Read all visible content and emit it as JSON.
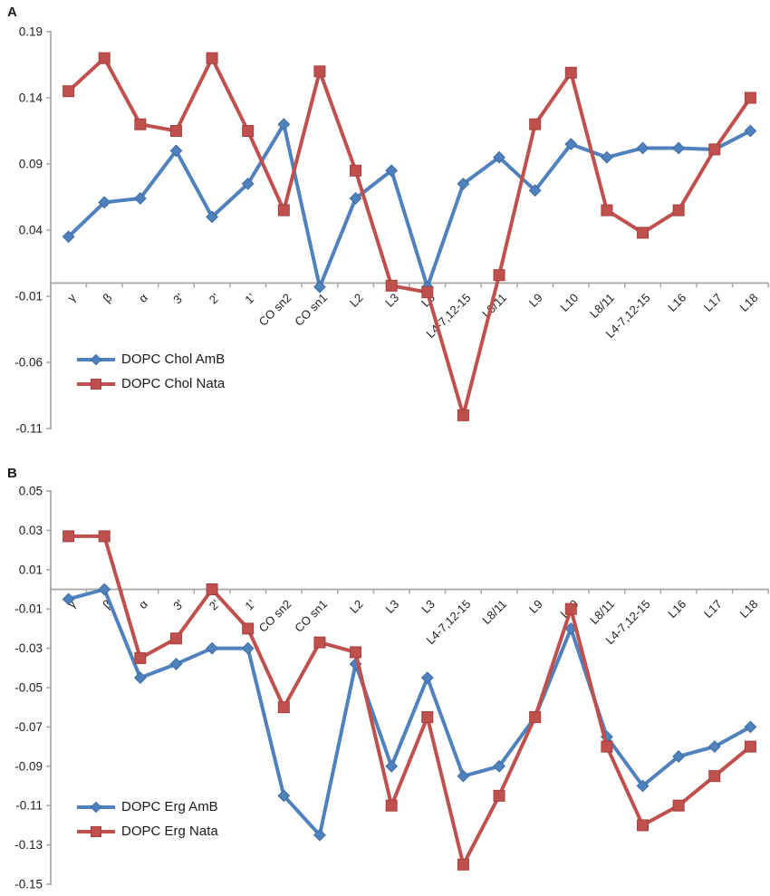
{
  "figure": {
    "background": "#ffffff",
    "text_color": "#1f1f1f",
    "axis_color": "#a6a6a6"
  },
  "chart_data": [
    {
      "panel_label": "A",
      "type": "line",
      "grid": false,
      "legend_position": "inside-bottom-left",
      "categories": [
        "γ",
        "β",
        "α",
        "3'",
        "2'",
        "1'",
        "CO sn2",
        "CO sn1",
        "L2",
        "L3",
        "L3",
        "L4-7,12-15",
        "L8/11",
        "L9",
        "L10",
        "L8/11",
        "L4-7,12-15",
        "L16",
        "L17",
        "L18"
      ],
      "xlabel": "",
      "ylabel": "",
      "ylim": [
        -0.11,
        0.19
      ],
      "yticks": [
        0.19,
        0.14,
        0.09,
        0.04,
        -0.01,
        -0.06,
        -0.11
      ],
      "series": [
        {
          "name": "DOPC Chol AmB",
          "color": "#4F81BD",
          "edge_color": "#3D6CA5",
          "marker": "diamond",
          "values": [
            0.035,
            0.061,
            0.064,
            0.1,
            0.05,
            0.075,
            0.12,
            -0.003,
            0.064,
            0.085,
            -0.003,
            0.075,
            0.095,
            0.07,
            0.105,
            0.095,
            0.102,
            0.102,
            0.101,
            0.115
          ]
        },
        {
          "name": "DOPC Chol Nata",
          "color": "#C0504D",
          "edge_color": "#A6403E",
          "marker": "square",
          "values": [
            0.145,
            0.17,
            0.12,
            0.115,
            0.17,
            0.115,
            0.055,
            0.16,
            0.085,
            -0.002,
            -0.007,
            -0.1,
            0.006,
            0.12,
            0.159,
            0.055,
            0.038,
            0.055,
            0.101,
            0.14
          ]
        }
      ]
    },
    {
      "panel_label": "B",
      "type": "line",
      "grid": false,
      "legend_position": "inside-bottom-left",
      "categories": [
        "γ",
        "β",
        "α",
        "3'",
        "2'",
        "1'",
        "CO sn2",
        "CO sn1",
        "L2",
        "L3",
        "L3",
        "L4-7,12-15",
        "L8/11",
        "L9",
        "L10",
        "L8/11",
        "L4-7,12-15",
        "L16",
        "L17",
        "L18"
      ],
      "xlabel": "",
      "ylabel": "",
      "ylim": [
        -0.15,
        0.05
      ],
      "yticks": [
        0.05,
        0.03,
        0.01,
        -0.01,
        -0.03,
        -0.05,
        -0.07,
        -0.09,
        -0.11,
        -0.13,
        -0.15
      ],
      "series": [
        {
          "name": "DOPC Erg AmB",
          "color": "#4F81BD",
          "edge_color": "#3D6CA5",
          "marker": "diamond",
          "values": [
            -0.005,
            0.0,
            -0.045,
            -0.038,
            -0.03,
            -0.03,
            -0.105,
            -0.125,
            -0.038,
            -0.09,
            -0.045,
            -0.095,
            -0.09,
            -0.065,
            -0.02,
            -0.075,
            -0.1,
            -0.085,
            -0.08,
            -0.07
          ]
        },
        {
          "name": "DOPC Erg Nata",
          "color": "#C0504D",
          "edge_color": "#A6403E",
          "marker": "square",
          "values": [
            0.027,
            0.027,
            -0.035,
            -0.025,
            0.0,
            -0.02,
            -0.06,
            -0.027,
            -0.032,
            -0.11,
            -0.065,
            -0.14,
            -0.105,
            -0.065,
            -0.01,
            -0.08,
            -0.12,
            -0.11,
            -0.095,
            -0.08
          ]
        }
      ]
    }
  ]
}
